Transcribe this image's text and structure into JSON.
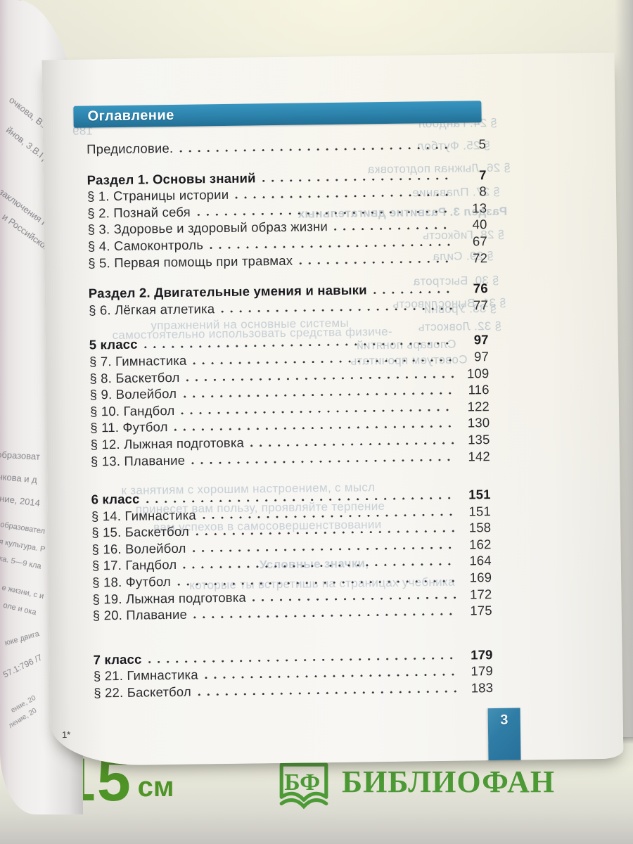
{
  "toc": {
    "header": "Оглавление",
    "page_number": "3",
    "footnote": "1*",
    "entries": [
      {
        "label": "Предисловие.",
        "page": "5",
        "bold": false,
        "gap": 0
      },
      {
        "label": "Раздел 1. Основы знаний",
        "page": "7",
        "bold": true,
        "gap": 20
      },
      {
        "label": "§ 1. Страницы истории",
        "page": "8",
        "bold": false,
        "gap": 0
      },
      {
        "label": "§ 2. Познай себя",
        "page": "13",
        "bold": false,
        "gap": 0
      },
      {
        "label": "§ 3. Здоровье и здоровый образ жизни",
        "page": "40",
        "bold": false,
        "gap": 0
      },
      {
        "label": "§ 4. Самоконтроль",
        "page": "67",
        "bold": false,
        "gap": 0
      },
      {
        "label": "§ 5. Первая помощь при травмах",
        "page": "72",
        "bold": false,
        "gap": 0
      },
      {
        "label": "Раздел 2. Двигательные умения и навыки",
        "page": "76",
        "bold": true,
        "gap": 20
      },
      {
        "label": "§ 6. Лёгкая атлетика",
        "page": "77",
        "bold": false,
        "gap": 0
      },
      {
        "label": "5 класс",
        "page": "97",
        "bold": true,
        "gap": 26
      },
      {
        "label": "§ 7. Гимнастика",
        "page": "97",
        "bold": false,
        "gap": 0
      },
      {
        "label": "§ 8. Баскетбол",
        "page": "109",
        "bold": false,
        "gap": 0
      },
      {
        "label": "§ 9. Волейбол",
        "page": "116",
        "bold": false,
        "gap": 0
      },
      {
        "label": "§ 10. Гандбол",
        "page": "122",
        "bold": false,
        "gap": 0
      },
      {
        "label": "§ 11. Футбол",
        "page": "130",
        "bold": false,
        "gap": 0
      },
      {
        "label": "§ 12. Лыжная подготовка",
        "page": "135",
        "bold": false,
        "gap": 0
      },
      {
        "label": "§ 13. Плавание",
        "page": "142",
        "bold": false,
        "gap": 0
      },
      {
        "label": "6 класс",
        "page": "151",
        "bold": true,
        "gap": 31
      },
      {
        "label": "§ 14. Гимнастика",
        "page": "151",
        "bold": false,
        "gap": 0
      },
      {
        "label": "§ 15. Баскетбол",
        "page": "158",
        "bold": false,
        "gap": 0
      },
      {
        "label": "§ 16. Волейбол",
        "page": "162",
        "bold": false,
        "gap": 0
      },
      {
        "label": "§ 17. Гандбол",
        "page": "164",
        "bold": false,
        "gap": 0
      },
      {
        "label": "§ 18. Футбол",
        "page": "169",
        "bold": false,
        "gap": 0
      },
      {
        "label": "§ 19. Лыжная подготовка",
        "page": "172",
        "bold": false,
        "gap": 0
      },
      {
        "label": "§ 20. Плавание",
        "page": "175",
        "bold": false,
        "gap": 0
      },
      {
        "label": "7 класс",
        "page": "179",
        "bold": true,
        "gap": 39
      },
      {
        "label": "§ 21. Гимнастика",
        "page": "179",
        "bold": false,
        "gap": 0
      },
      {
        "label": "§ 22. Баскетбол",
        "page": "183",
        "bold": false,
        "gap": 0
      }
    ]
  },
  "bleedthrough": [
    "§ 24. Гандбол",
    "§ 25. Футбол",
    "§ 26. Лыжная подготовка",
    "§ 27. Плавание",
    "Раздел 3. Развитие двигательных",
    "§ 28. Гибкость",
    "§ 29. Сила",
    "§ 30. Быстрота",
    "§ 31. Выносливость",
    "§ 32. Ловкость",
    "§ 33. Уровни",
    "Словарь понятий",
    "Советуем прочитать",
    "189",
    "упражнений на основные системы",
    "самостоятельно использовать средства физиче-",
    "к занятиям с хорошим настроением, с мысл",
    "принесет вам пользу, проявляйте терпение",
    "вам успехов в самосовершенствовании",
    "Условные значки,",
    "которые ты встретишь на страницах учебника"
  ],
  "side_fragments": [
    "очкова, В.А.С",
    "йнов, З.В.Гре",
    "заключения Р",
    "и Российской а",
    "еобразоват",
    "очкова и д",
    "ение, 2014",
    "образовател",
    "я культура. Р",
    "ка. 5—9 кла",
    "е жизни, с и",
    "оле и ока",
    "юке двига",
    "57.1:796 /7",
    "ение, 20",
    "ление, 20"
  ],
  "backdrop": {
    "ruler_value": "15",
    "ruler_unit": "см",
    "logo_initials": "БФ",
    "logo_name": "БИБЛИОФАН"
  },
  "colors": {
    "header_bar": "#2c82ab",
    "page_tab": "#2f7da6",
    "logo_green": "#4c9a35",
    "ruler_green": "#4f9426"
  }
}
